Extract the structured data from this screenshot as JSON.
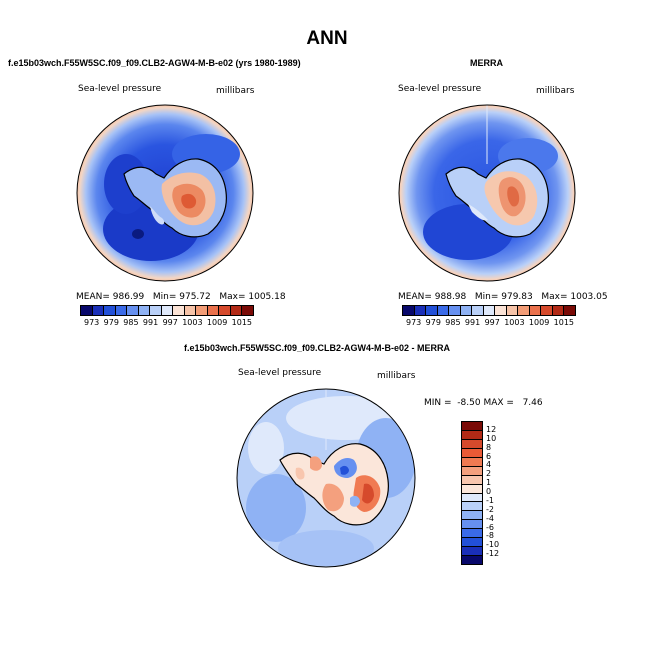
{
  "title": "ANN",
  "panels": {
    "model": {
      "case_title": "f.e15b03wch.F55W5SC.f09_f09.CLB2-AGW4-M-B-e02 (yrs 1980-1989)",
      "variable": "Sea-level pressure",
      "units": "millibars",
      "mean_label": "MEAN=",
      "mean": "986.99",
      "min_label": "Min=",
      "min": "975.72",
      "max_label": "Max=",
      "max": "1005.18"
    },
    "obs": {
      "case_title": "MERRA",
      "variable": "Sea-level pressure",
      "units": "millibars",
      "mean_label": "MEAN=",
      "mean": "988.98",
      "min_label": "Min=",
      "min": "979.83",
      "max_label": "Max=",
      "max": "1003.05"
    },
    "diff": {
      "case_title": "f.e15b03wch.F55W5SC.f09_f09.CLB2-AGW4-M-B-e02 - MERRA",
      "variable": "Sea-level pressure",
      "units": "millibars",
      "min_label": "MIN =",
      "min": "-8.50",
      "max_label": "MAX =",
      "max": "7.46"
    }
  },
  "colorbar_top": {
    "labels": [
      "973",
      "979",
      "985",
      "991",
      "997",
      "1003",
      "1009",
      "1015"
    ],
    "colors": [
      "#08086b",
      "#1a2fb8",
      "#2250d8",
      "#3a6ae8",
      "#6690f0",
      "#8fb2f4",
      "#b9d0f8",
      "#dfe9fb",
      "#fbe3d6",
      "#f6c3a8",
      "#f29c76",
      "#ea714c",
      "#d64a2c",
      "#b22a16",
      "#7a0a06"
    ]
  },
  "colorbar_diff": {
    "labels": [
      "12",
      "10",
      "8",
      "6",
      "4",
      "2",
      "1",
      "0",
      "-1",
      "-2",
      "-4",
      "-6",
      "-8",
      "-10",
      "-12"
    ],
    "colors": [
      "#7a0a06",
      "#b22a16",
      "#d64a2c",
      "#ea5a36",
      "#f07a52",
      "#f4a07e",
      "#f8c6ae",
      "#fbe6da",
      "#dfe9fb",
      "#b9d0f8",
      "#8fb2f4",
      "#6690f0",
      "#3a6ae8",
      "#2250d8",
      "#1a2fb8",
      "#08086b"
    ]
  }
}
